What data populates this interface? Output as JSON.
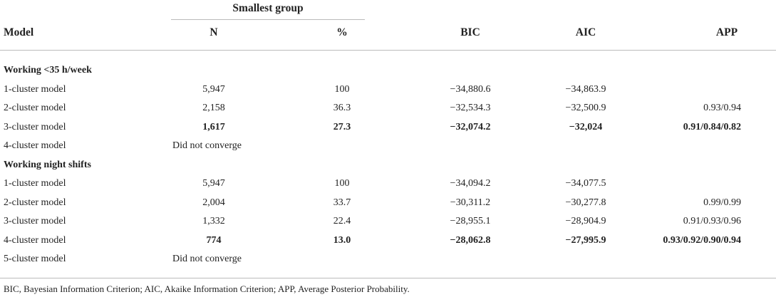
{
  "header": {
    "group": "Smallest group",
    "columns": [
      "Model",
      "N",
      "%",
      "BIC",
      "AIC",
      "APP"
    ]
  },
  "sections": [
    {
      "title": "Working <35 h/week",
      "rows": [
        {
          "model": "1-cluster model",
          "n": "5,947",
          "pct": "100",
          "bic": "−34,880.6",
          "aic": "−34,863.9"
        },
        {
          "model": "2-cluster model",
          "n": "2,158",
          "pct": "36.3",
          "bic": "−32,534.3",
          "aic": "−32,500.9",
          "app": "0.93/0.94"
        },
        {
          "model": "3-cluster model",
          "n": "1,617",
          "pct": "27.3",
          "bic": "−32,074.2",
          "aic": "−32,024",
          "app": "0.91/0.84/0.82",
          "bold": true
        },
        {
          "model": "4-cluster model",
          "note": "Did not converge"
        }
      ]
    },
    {
      "title": "Working night shifts",
      "rows": [
        {
          "model": "1-cluster model",
          "n": "5,947",
          "pct": "100",
          "bic": "−34,094.2",
          "aic": "−34,077.5"
        },
        {
          "model": "2-cluster model",
          "n": "2,004",
          "pct": "33.7",
          "bic": "−30,311.2",
          "aic": "−30,277.8",
          "app": "0.99/0.99"
        },
        {
          "model": "3-cluster model",
          "n": "1,332",
          "pct": "22.4",
          "bic": "−28,955.1",
          "aic": "−28,904.9",
          "app": "0.91/0.93/0.96"
        },
        {
          "model": "4-cluster model",
          "n": "774",
          "pct": "13.0",
          "bic": "−28,062.8",
          "aic": "−27,995.9",
          "app": "0.93/0.92/0.90/0.94",
          "bold": true
        },
        {
          "model": "5-cluster model",
          "note": "Did not converge"
        }
      ]
    }
  ],
  "footnote": "BIC, Bayesian Information Criterion; AIC, Akaike Information Criterion; APP, Average Posterior Probability."
}
